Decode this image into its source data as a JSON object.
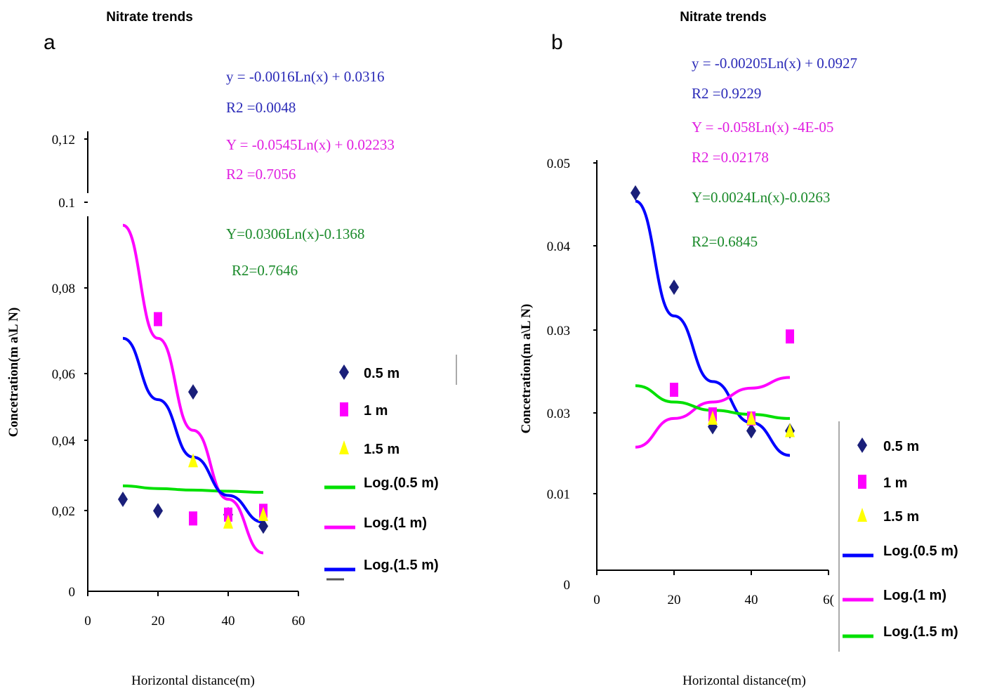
{
  "panels": [
    {
      "id": "a",
      "panel_label": "a",
      "title": "Nitrate trends",
      "xlabel": "Horizontal distance(m)",
      "ylabel": "Concetration(m a\\L N)",
      "equations": [
        {
          "text": "y = -0.0016Ln(x) + 0.0316",
          "color": "#2b2bb8"
        },
        {
          "text": "R2 =0.0048",
          "color": "#2b2bb8"
        },
        {
          "text": "Y = -0.0545Ln(x) + 0.02233",
          "color": "#e01ee0"
        },
        {
          "text": "R2 =0.7056",
          "color": "#e01ee0"
        },
        {
          "text": "Y=0.0306Ln(x)-0.1368",
          "color": "#1a8a2a"
        },
        {
          "text": "R2=0.7646",
          "color": "#1a8a2a"
        }
      ],
      "legend": [
        {
          "label": "0.5 m",
          "symbol": "diamond",
          "color": "#1a1f7a"
        },
        {
          "label": "1  m",
          "symbol": "square",
          "color": "#ff00ff"
        },
        {
          "label": "1.5 m",
          "symbol": "triangle",
          "color": "#ffff00"
        },
        {
          "label": "Log.(0.5 m)",
          "symbol": "line",
          "color": "#00e000"
        },
        {
          "label": "Log.(1 m)",
          "symbol": "line",
          "color": "#ff00ff"
        },
        {
          "label": "Log.(1.5 m)",
          "symbol": "line",
          "color": "#0000ff"
        }
      ]
    },
    {
      "id": "b",
      "panel_label": "b",
      "title": "Nitrate trends",
      "xlabel": "Horizontal distance(m)",
      "ylabel": "Concetration(m a\\L N)",
      "equations": [
        {
          "text": "y = -0.00205Ln(x) + 0.0927",
          "color": "#2b2bb8"
        },
        {
          "text": "R2 =0.9229",
          "color": "#2b2bb8"
        },
        {
          "text": "Y = -0.058Ln(x) -4E-05",
          "color": "#e01ee0"
        },
        {
          "text": "R2 =0.02178",
          "color": "#e01ee0"
        },
        {
          "text": "Y=0.0024Ln(x)-0.0263",
          "color": "#1a8a2a"
        },
        {
          "text": "R2=0.6845",
          "color": "#1a8a2a"
        }
      ],
      "legend": [
        {
          "label": "0.5 m",
          "symbol": "diamond",
          "color": "#1a1f7a"
        },
        {
          "label": "1 m",
          "symbol": "square",
          "color": "#ff00ff"
        },
        {
          "label": "1.5 m",
          "symbol": "triangle",
          "color": "#ffff00"
        },
        {
          "label": "Log.(0.5 m)",
          "symbol": "line",
          "color": "#0000ff"
        },
        {
          "label": "Log.(1 m)",
          "symbol": "line",
          "color": "#ff00ff"
        },
        {
          "label": "Log.(1.5 m)",
          "symbol": "line",
          "color": "#00e000"
        }
      ]
    }
  ],
  "chart_data": [
    {
      "type": "scatter",
      "title": "Nitrate trends",
      "xlabel": "Horizontal distance(m)",
      "ylabel": "Concetration(m a\\L N)",
      "xlim": [
        0,
        60
      ],
      "x_ticks": [
        "0",
        "20",
        "40",
        "60"
      ],
      "y_ticks": [
        "0",
        "0,02",
        "0,04",
        "0,06",
        "0,08",
        "0.1",
        "0,12"
      ],
      "ylim": [
        0,
        0.12
      ],
      "grid": false,
      "legend_position": "right",
      "series": [
        {
          "name": "0.5 m",
          "x": [
            10,
            20,
            30,
            40,
            50
          ],
          "y": [
            0.024,
            0.021,
            0.052,
            0.02,
            0.017
          ],
          "color": "#1a1f7a",
          "marker": "diamond"
        },
        {
          "name": "1  m",
          "x": [
            20,
            30,
            40,
            50
          ],
          "y": [
            0.071,
            0.019,
            0.02,
            0.021
          ],
          "color": "#ff00ff",
          "marker": "square"
        },
        {
          "name": "1.5 m",
          "x": [
            30,
            40,
            50
          ],
          "y": [
            0.034,
            0.018,
            0.02
          ],
          "color": "#ffff00",
          "marker": "triangle"
        }
      ],
      "trendlines": [
        {
          "name": "Log.(0.5 m)",
          "color": "#00e000",
          "x": [
            10,
            20,
            30,
            40,
            50
          ],
          "y": [
            0.0275,
            0.0268,
            0.0264,
            0.0261,
            0.0258
          ]
        },
        {
          "name": "Log.(1 m)",
          "color": "#ff00ff",
          "x": [
            10,
            20,
            30,
            40,
            50
          ],
          "y": [
            0.0955,
            0.066,
            0.042,
            0.024,
            0.01
          ]
        },
        {
          "name": "Log.(1.5 m)",
          "color": "#0000ff",
          "x": [
            10,
            20,
            30,
            40,
            50
          ],
          "y": [
            0.066,
            0.05,
            0.035,
            0.025,
            0.018
          ]
        }
      ]
    },
    {
      "type": "scatter",
      "title": "Nitrate trends",
      "xlabel": "Horizontal distance(m)",
      "ylabel": "Concetration(m a\\L N)",
      "xlim": [
        0,
        60
      ],
      "x_ticks": [
        "0",
        "20",
        "40",
        "6("
      ],
      "y_ticks": [
        "0",
        "0.01",
        "0.03",
        "0.03",
        "0.04",
        "0.05"
      ],
      "ylim": [
        0,
        0.05
      ],
      "grid": false,
      "legend_position": "right",
      "series": [
        {
          "name": "0.5 m",
          "x": [
            10,
            20,
            30,
            40,
            50
          ],
          "y": [
            0.046,
            0.0345,
            0.0175,
            0.017,
            0.017
          ],
          "color": "#1a1f7a",
          "marker": "diamond"
        },
        {
          "name": "1 m",
          "x": [
            20,
            30,
            40,
            50
          ],
          "y": [
            0.022,
            0.019,
            0.0185,
            0.0285
          ],
          "color": "#ff00ff",
          "marker": "square"
        },
        {
          "name": "1.5 m",
          "x": [
            30,
            40,
            50
          ],
          "y": [
            0.0185,
            0.0185,
            0.017
          ],
          "color": "#ffff00",
          "marker": "triangle"
        }
      ],
      "trendlines": [
        {
          "name": "Log.(0.5 m)",
          "color": "#0000ff",
          "x": [
            10,
            20,
            30,
            40,
            50
          ],
          "y": [
            0.045,
            0.031,
            0.023,
            0.018,
            0.014
          ]
        },
        {
          "name": "Log.(1 m)",
          "color": "#ff00ff",
          "x": [
            10,
            20,
            30,
            40,
            50
          ],
          "y": [
            0.015,
            0.0185,
            0.0205,
            0.0222,
            0.0235
          ]
        },
        {
          "name": "Log.(1.5 m)",
          "color": "#00e000",
          "x": [
            10,
            20,
            30,
            40,
            50
          ],
          "y": [
            0.0225,
            0.0205,
            0.0195,
            0.019,
            0.0185
          ]
        }
      ]
    }
  ]
}
